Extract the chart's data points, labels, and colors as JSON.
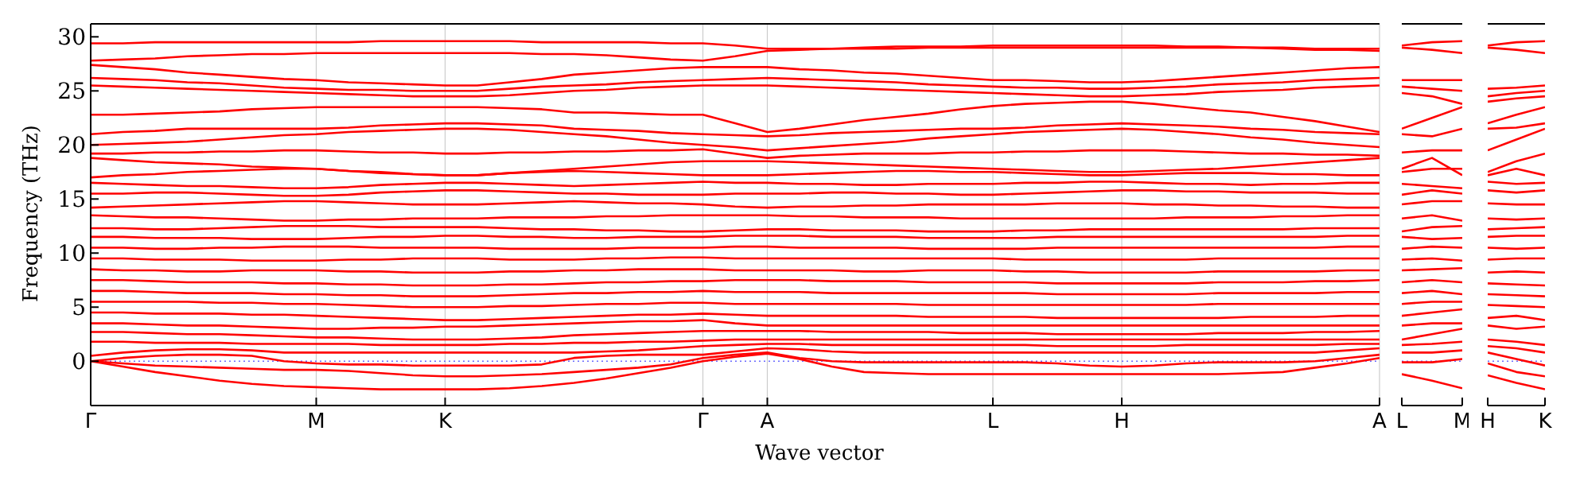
{
  "chart_data": [
    {
      "type": "line",
      "xlabel": "Wave vector",
      "ylabel": "Frequency (THz)",
      "ylim": [
        -4.1,
        31.2
      ],
      "yticks": [
        0,
        5,
        10,
        15,
        20,
        25,
        30
      ],
      "grid": "x",
      "marker": "none",
      "line_style": "solid",
      "ref_lines": [
        {
          "axis": "y",
          "value": 0,
          "color": "#6a6aff",
          "line_style": "dotted"
        }
      ],
      "categories": [
        "Γ",
        null,
        null,
        null,
        null,
        null,
        null,
        "M",
        null,
        null,
        null,
        "K",
        null,
        null,
        null,
        null,
        null,
        null,
        null,
        "Γ",
        null,
        "A",
        null,
        null,
        null,
        null,
        null,
        null,
        "L",
        null,
        null,
        null,
        "H",
        null,
        null,
        null,
        null,
        null,
        null,
        null,
        "A"
      ],
      "series": [
        {
          "color": "#ff0000",
          "values": [
            0,
            -0.5,
            -1,
            -1.4,
            -1.8,
            -2.1,
            -2.3,
            -2.4,
            -2.5,
            -2.6,
            -2.6,
            -2.6,
            -2.6,
            -2.5,
            -2.3,
            -2,
            -1.6,
            -1.1,
            -0.6,
            0,
            0.4,
            0.7,
            0.2,
            -0.5,
            -1,
            -1.1,
            -1.2,
            -1.2,
            -1.2,
            -1.2,
            -1.2,
            -1.2,
            -1.2,
            -1.2,
            -1.2,
            -1.2,
            -1.1,
            -1,
            -0.6,
            -0.2,
            0.3
          ]
        },
        {
          "color": "#ff0000",
          "values": [
            0,
            -0.2,
            -0.4,
            -0.5,
            -0.6,
            -0.7,
            -0.8,
            -0.8,
            -0.9,
            -1.1,
            -1.3,
            -1.4,
            -1.4,
            -1.3,
            -1.2,
            -1,
            -0.8,
            -0.6,
            -0.3,
            0.3,
            0.6,
            0.8,
            0.3,
            0,
            -0.1,
            -0.1,
            -0.1,
            -0.1,
            -0.1,
            -0.1,
            -0.2,
            -0.4,
            -0.5,
            -0.4,
            -0.2,
            -0.1,
            -0.1,
            -0.1,
            0,
            0.3,
            0.6
          ]
        },
        {
          "color": "#ff0000",
          "values": [
            0,
            0.3,
            0.5,
            0.6,
            0.6,
            0.5,
            0,
            -0.2,
            -0.3,
            -0.3,
            -0.4,
            -0.4,
            -0.4,
            -0.4,
            -0.3,
            0.3,
            0.5,
            0.6,
            0.6,
            0.6,
            0.9,
            1.2,
            1.1,
            0.9,
            0.8,
            0.8,
            0.8,
            0.8,
            0.8,
            0.8,
            0.8,
            0.8,
            0.8,
            0.8,
            0.8,
            0.8,
            0.8,
            0.8,
            0.8,
            1,
            1.2
          ]
        },
        {
          "color": "#ff0000",
          "values": [
            0.5,
            0.8,
            1,
            1.1,
            1.1,
            1,
            0.8,
            0.8,
            0.8,
            0.8,
            0.8,
            0.8,
            0.8,
            0.8,
            0.8,
            0.8,
            0.9,
            1,
            1.2,
            1.4,
            1.5,
            1.6,
            1.6,
            1.5,
            1.5,
            1.5,
            1.5,
            1.5,
            1.5,
            1.5,
            1.4,
            1.4,
            1.4,
            1.4,
            1.5,
            1.5,
            1.5,
            1.5,
            1.5,
            1.6,
            1.6
          ]
        },
        {
          "color": "#ff0000",
          "values": [
            1.8,
            1.8,
            1.7,
            1.7,
            1.7,
            1.6,
            1.6,
            1.6,
            1.6,
            1.5,
            1.5,
            1.5,
            1.5,
            1.6,
            1.6,
            1.7,
            1.7,
            1.8,
            1.8,
            1.9,
            2,
            2,
            2,
            2,
            2,
            2,
            2,
            2,
            2,
            2,
            2,
            2,
            2,
            2,
            2,
            2,
            2,
            2,
            2,
            2,
            2
          ]
        },
        {
          "color": "#ff0000",
          "values": [
            2.7,
            2.7,
            2.6,
            2.5,
            2.5,
            2.4,
            2.3,
            2.2,
            2.2,
            2.1,
            2,
            2,
            2,
            2.1,
            2.2,
            2.4,
            2.5,
            2.6,
            2.7,
            2.8,
            2.8,
            2.8,
            2.8,
            2.7,
            2.7,
            2.7,
            2.7,
            2.6,
            2.6,
            2.6,
            2.5,
            2.5,
            2.5,
            2.5,
            2.5,
            2.6,
            2.6,
            2.6,
            2.7,
            2.7,
            2.8
          ]
        },
        {
          "color": "#ff0000",
          "values": [
            3.5,
            3.5,
            3.4,
            3.3,
            3.3,
            3.2,
            3.1,
            3,
            3,
            3.1,
            3.1,
            3.2,
            3.2,
            3.3,
            3.4,
            3.5,
            3.6,
            3.7,
            3.7,
            3.8,
            3.5,
            3.3,
            3.3,
            3.3,
            3.3,
            3.3,
            3.3,
            3.3,
            3.3,
            3.3,
            3.3,
            3.3,
            3.3,
            3.3,
            3.3,
            3.3,
            3.3,
            3.3,
            3.3,
            3.3,
            3.3
          ]
        },
        {
          "color": "#ff0000",
          "values": [
            4.5,
            4.5,
            4.4,
            4.4,
            4.4,
            4.3,
            4.3,
            4.2,
            4.1,
            4,
            3.9,
            3.8,
            3.8,
            3.9,
            4,
            4.1,
            4.2,
            4.3,
            4.3,
            4.4,
            4.3,
            4.2,
            4.2,
            4.2,
            4.2,
            4.2,
            4.1,
            4.1,
            4.1,
            4.1,
            4,
            4,
            4,
            4,
            4,
            4,
            4.1,
            4.1,
            4.1,
            4.2,
            4.2
          ]
        },
        {
          "color": "#ff0000",
          "values": [
            5.5,
            5.5,
            5.5,
            5.5,
            5.4,
            5.4,
            5.3,
            5.3,
            5.2,
            5.1,
            5,
            5,
            5,
            5.1,
            5.1,
            5.2,
            5.3,
            5.3,
            5.4,
            5.4,
            5.3,
            5.3,
            5.3,
            5.3,
            5.3,
            5.3,
            5.2,
            5.2,
            5.2,
            5.2,
            5.2,
            5.2,
            5.2,
            5.2,
            5.2,
            5.3,
            5.3,
            5.3,
            5.3,
            5.3,
            5.3
          ]
        },
        {
          "color": "#ff0000",
          "values": [
            6.5,
            6.5,
            6.4,
            6.3,
            6.3,
            6.3,
            6.2,
            6.2,
            6.1,
            6.1,
            6,
            6,
            6,
            6.1,
            6.2,
            6.3,
            6.3,
            6.4,
            6.4,
            6.5,
            6.4,
            6.4,
            6.4,
            6.3,
            6.3,
            6.3,
            6.3,
            6.3,
            6.3,
            6.3,
            6.2,
            6.2,
            6.2,
            6.2,
            6.2,
            6.3,
            6.3,
            6.3,
            6.3,
            6.4,
            6.4
          ]
        },
        {
          "color": "#ff0000",
          "values": [
            7.5,
            7.5,
            7.4,
            7.3,
            7.3,
            7.3,
            7.2,
            7.2,
            7.1,
            7.1,
            7,
            7,
            7,
            7.1,
            7.1,
            7.2,
            7.3,
            7.3,
            7.4,
            7.4,
            7.5,
            7.5,
            7.5,
            7.4,
            7.4,
            7.4,
            7.3,
            7.3,
            7.3,
            7.3,
            7.2,
            7.2,
            7.2,
            7.2,
            7.2,
            7.3,
            7.3,
            7.3,
            7.4,
            7.4,
            7.5
          ]
        },
        {
          "color": "#ff0000",
          "values": [
            8.5,
            8.4,
            8.4,
            8.3,
            8.3,
            8.4,
            8.4,
            8.4,
            8.3,
            8.3,
            8.2,
            8.2,
            8.2,
            8.3,
            8.3,
            8.4,
            8.4,
            8.5,
            8.5,
            8.5,
            8.4,
            8.4,
            8.4,
            8.4,
            8.3,
            8.3,
            8.4,
            8.4,
            8.4,
            8.3,
            8.3,
            8.2,
            8.2,
            8.2,
            8.2,
            8.3,
            8.3,
            8.3,
            8.3,
            8.4,
            8.4
          ]
        },
        {
          "color": "#ff0000",
          "values": [
            9.5,
            9.5,
            9.4,
            9.4,
            9.4,
            9.3,
            9.3,
            9.3,
            9.4,
            9.4,
            9.5,
            9.5,
            9.5,
            9.4,
            9.4,
            9.4,
            9.5,
            9.5,
            9.6,
            9.6,
            9.5,
            9.5,
            9.5,
            9.5,
            9.5,
            9.5,
            9.5,
            9.5,
            9.5,
            9.4,
            9.4,
            9.4,
            9.4,
            9.4,
            9.4,
            9.5,
            9.5,
            9.5,
            9.5,
            9.5,
            9.5
          ]
        },
        {
          "color": "#ff0000",
          "values": [
            10.5,
            10.5,
            10.4,
            10.4,
            10.5,
            10.5,
            10.6,
            10.6,
            10.6,
            10.5,
            10.5,
            10.5,
            10.5,
            10.4,
            10.4,
            10.4,
            10.4,
            10.5,
            10.5,
            10.5,
            10.6,
            10.6,
            10.5,
            10.5,
            10.5,
            10.5,
            10.4,
            10.4,
            10.4,
            10.4,
            10.5,
            10.5,
            10.5,
            10.5,
            10.5,
            10.5,
            10.5,
            10.5,
            10.5,
            10.6,
            10.6
          ]
        },
        {
          "color": "#ff0000",
          "values": [
            11.5,
            11.5,
            11.4,
            11.4,
            11.4,
            11.3,
            11.3,
            11.3,
            11.4,
            11.5,
            11.5,
            11.6,
            11.6,
            11.5,
            11.5,
            11.4,
            11.4,
            11.5,
            11.5,
            11.5,
            11.6,
            11.6,
            11.6,
            11.5,
            11.5,
            11.5,
            11.4,
            11.4,
            11.4,
            11.4,
            11.5,
            11.5,
            11.5,
            11.5,
            11.5,
            11.5,
            11.5,
            11.5,
            11.5,
            11.6,
            11.6
          ]
        },
        {
          "color": "#ff0000",
          "values": [
            12.3,
            12.3,
            12.2,
            12.2,
            12.3,
            12.4,
            12.5,
            12.5,
            12.5,
            12.4,
            12.4,
            12.4,
            12.4,
            12.3,
            12.2,
            12.2,
            12.1,
            12.1,
            12,
            12,
            12.1,
            12.2,
            12.2,
            12.1,
            12.1,
            12.1,
            12,
            12,
            12,
            12.1,
            12.1,
            12.2,
            12.2,
            12.2,
            12.2,
            12.2,
            12.2,
            12.2,
            12.3,
            12.3,
            12.3
          ]
        },
        {
          "color": "#ff0000",
          "values": [
            13.5,
            13.4,
            13.3,
            13.3,
            13.2,
            13.1,
            13,
            13,
            13.1,
            13.1,
            13.2,
            13.2,
            13.2,
            13.3,
            13.3,
            13.3,
            13.4,
            13.4,
            13.5,
            13.5,
            13.5,
            13.5,
            13.4,
            13.4,
            13.3,
            13.3,
            13.3,
            13.2,
            13.2,
            13.2,
            13.2,
            13.2,
            13.2,
            13.2,
            13.3,
            13.3,
            13.3,
            13.4,
            13.4,
            13.5,
            13.5
          ]
        },
        {
          "color": "#ff0000",
          "values": [
            14.2,
            14.3,
            14.4,
            14.5,
            14.6,
            14.7,
            14.8,
            14.8,
            14.7,
            14.6,
            14.5,
            14.5,
            14.5,
            14.6,
            14.7,
            14.8,
            14.7,
            14.6,
            14.6,
            14.5,
            14.3,
            14.2,
            14.3,
            14.3,
            14.4,
            14.4,
            14.5,
            14.5,
            14.5,
            14.5,
            14.6,
            14.6,
            14.6,
            14.5,
            14.5,
            14.4,
            14.4,
            14.3,
            14.3,
            14.2,
            14.2
          ]
        },
        {
          "color": "#ff0000",
          "values": [
            15.5,
            15.5,
            15.6,
            15.6,
            15.5,
            15.4,
            15.3,
            15.3,
            15.4,
            15.6,
            15.7,
            15.8,
            15.8,
            15.7,
            15.6,
            15.5,
            15.5,
            15.4,
            15.4,
            15.4,
            15.5,
            15.5,
            15.5,
            15.6,
            15.6,
            15.5,
            15.5,
            15.4,
            15.4,
            15.5,
            15.6,
            15.7,
            15.8,
            15.8,
            15.7,
            15.7,
            15.6,
            15.6,
            15.6,
            15.5,
            15.5
          ]
        },
        {
          "color": "#ff0000",
          "values": [
            16.5,
            16.4,
            16.3,
            16.2,
            16.2,
            16.1,
            16,
            16,
            16.1,
            16.3,
            16.4,
            16.5,
            16.5,
            16.4,
            16.3,
            16.2,
            16.3,
            16.4,
            16.5,
            16.6,
            16.5,
            16.5,
            16.4,
            16.4,
            16.3,
            16.3,
            16.4,
            16.4,
            16.4,
            16.5,
            16.5,
            16.6,
            16.6,
            16.5,
            16.4,
            16.4,
            16.3,
            16.4,
            16.4,
            16.5,
            16.5
          ]
        },
        {
          "color": "#ff0000",
          "values": [
            17,
            17.2,
            17.3,
            17.5,
            17.6,
            17.7,
            17.8,
            17.8,
            17.6,
            17.5,
            17.3,
            17.2,
            17.2,
            17.4,
            17.5,
            17.6,
            17.5,
            17.4,
            17.3,
            17.2,
            17.2,
            17.2,
            17.3,
            17.4,
            17.5,
            17.6,
            17.6,
            17.5,
            17.5,
            17.4,
            17.3,
            17.2,
            17.2,
            17.3,
            17.4,
            17.4,
            17.4,
            17.3,
            17.3,
            17.2,
            17.2
          ]
        },
        {
          "color": "#ff0000",
          "values": [
            18.8,
            18.6,
            18.4,
            18.3,
            18.2,
            18,
            17.9,
            17.8,
            17.6,
            17.4,
            17.3,
            17.2,
            17.2,
            17.4,
            17.6,
            17.8,
            18,
            18.2,
            18.4,
            18.5,
            18.5,
            18.5,
            18.4,
            18.3,
            18.2,
            18.1,
            18,
            17.9,
            17.8,
            17.7,
            17.6,
            17.5,
            17.5,
            17.6,
            17.7,
            17.8,
            18,
            18.2,
            18.4,
            18.6,
            18.8
          ]
        },
        {
          "color": "#ff0000",
          "values": [
            19.2,
            19.2,
            19.3,
            19.3,
            19.4,
            19.4,
            19.5,
            19.5,
            19.4,
            19.3,
            19.3,
            19.2,
            19.2,
            19.3,
            19.3,
            19.4,
            19.4,
            19.5,
            19.5,
            19.6,
            19.2,
            18.8,
            19,
            19.1,
            19.2,
            19.2,
            19.2,
            19.3,
            19.3,
            19.4,
            19.4,
            19.5,
            19.5,
            19.5,
            19.4,
            19.3,
            19.2,
            19.2,
            19.1,
            19.1,
            19
          ]
        },
        {
          "color": "#ff0000",
          "values": [
            20,
            20.1,
            20.2,
            20.3,
            20.5,
            20.7,
            20.9,
            21,
            21.2,
            21.3,
            21.4,
            21.5,
            21.5,
            21.4,
            21.2,
            21,
            20.8,
            20.5,
            20.2,
            20,
            19.8,
            19.5,
            19.7,
            19.9,
            20.1,
            20.3,
            20.6,
            20.8,
            21,
            21.2,
            21.3,
            21.4,
            21.5,
            21.4,
            21.2,
            21,
            20.7,
            20.5,
            20.2,
            20,
            19.8
          ]
        },
        {
          "color": "#ff0000",
          "values": [
            21,
            21.2,
            21.3,
            21.5,
            21.5,
            21.5,
            21.5,
            21.5,
            21.6,
            21.8,
            21.9,
            22,
            22,
            21.9,
            21.8,
            21.5,
            21.4,
            21.3,
            21.1,
            21,
            20.9,
            20.8,
            20.9,
            21.1,
            21.2,
            21.3,
            21.4,
            21.5,
            21.5,
            21.6,
            21.8,
            21.9,
            22,
            21.9,
            21.8,
            21.7,
            21.5,
            21.4,
            21.2,
            21.1,
            21
          ]
        },
        {
          "color": "#ff0000",
          "values": [
            22.8,
            22.8,
            22.9,
            23,
            23.1,
            23.3,
            23.4,
            23.5,
            23.5,
            23.5,
            23.5,
            23.5,
            23.5,
            23.4,
            23.3,
            23,
            23,
            22.9,
            22.8,
            22.8,
            22,
            21.2,
            21.5,
            21.9,
            22.3,
            22.6,
            22.9,
            23.3,
            23.6,
            23.8,
            23.9,
            24,
            24,
            23.8,
            23.5,
            23.2,
            23,
            22.6,
            22.2,
            21.7,
            21.2
          ]
        },
        {
          "color": "#ff0000",
          "values": [
            25.5,
            25.4,
            25.3,
            25.2,
            25.1,
            25,
            24.9,
            24.8,
            24.7,
            24.6,
            24.5,
            24.5,
            24.5,
            24.6,
            24.8,
            25,
            25.1,
            25.3,
            25.4,
            25.5,
            25.5,
            25.5,
            25.4,
            25.3,
            25.2,
            25.1,
            25,
            24.9,
            24.8,
            24.7,
            24.6,
            24.5,
            24.5,
            24.6,
            24.7,
            24.9,
            25,
            25.1,
            25.3,
            25.4,
            25.5
          ]
        },
        {
          "color": "#ff0000",
          "values": [
            26.2,
            26.1,
            26,
            25.8,
            25.7,
            25.5,
            25.3,
            25.2,
            25.1,
            25.1,
            25,
            25,
            25,
            25.2,
            25.4,
            25.5,
            25.6,
            25.8,
            25.9,
            26,
            26.1,
            26.2,
            26.1,
            26,
            25.9,
            25.8,
            25.6,
            25.5,
            25.4,
            25.3,
            25.3,
            25.2,
            25.2,
            25.3,
            25.4,
            25.6,
            25.7,
            25.8,
            26,
            26.1,
            26.2
          ]
        },
        {
          "color": "#ff0000",
          "values": [
            27.4,
            27.2,
            27,
            26.7,
            26.5,
            26.3,
            26.1,
            26,
            25.8,
            25.7,
            25.6,
            25.5,
            25.5,
            25.8,
            26.1,
            26.5,
            26.7,
            26.9,
            27.1,
            27.2,
            27.2,
            27.2,
            27,
            26.9,
            26.7,
            26.6,
            26.4,
            26.2,
            26,
            26,
            25.9,
            25.8,
            25.8,
            25.9,
            26.1,
            26.3,
            26.5,
            26.7,
            26.9,
            27.1,
            27.2
          ]
        },
        {
          "color": "#ff0000",
          "values": [
            27.8,
            27.9,
            28,
            28.2,
            28.3,
            28.4,
            28.4,
            28.5,
            28.5,
            28.5,
            28.5,
            28.5,
            28.5,
            28.5,
            28.4,
            28.4,
            28.3,
            28.1,
            27.9,
            27.8,
            28.2,
            28.7,
            28.8,
            28.9,
            28.9,
            28.9,
            29,
            29,
            29,
            29,
            29,
            29,
            29,
            29,
            29,
            29,
            29,
            28.9,
            28.8,
            28.8,
            28.7
          ]
        },
        {
          "color": "#ff0000",
          "values": [
            29.4,
            29.4,
            29.5,
            29.5,
            29.5,
            29.5,
            29.5,
            29.5,
            29.5,
            29.6,
            29.6,
            29.6,
            29.6,
            29.6,
            29.5,
            29.5,
            29.5,
            29.5,
            29.4,
            29.4,
            29.2,
            28.9,
            28.9,
            28.9,
            29,
            29.1,
            29.1,
            29.1,
            29.2,
            29.2,
            29.2,
            29.2,
            29.2,
            29.2,
            29.1,
            29.1,
            29,
            29,
            28.9,
            28.9,
            28.9
          ]
        }
      ]
    },
    {
      "type": "line",
      "ylim": [
        -4.1,
        31.2
      ],
      "yticks": [
        0,
        5,
        10,
        15,
        20,
        25,
        30
      ],
      "tick_labels": "x",
      "marker": "none",
      "line_style": "solid",
      "ref_lines": [
        {
          "axis": "y",
          "value": 0,
          "color": "#6a6aff",
          "line_style": "dotted"
        }
      ],
      "categories": [
        "L",
        null,
        "M"
      ],
      "series": [
        {
          "color": "#ff0000",
          "values": [
            -1.2,
            -1.8,
            -2.5
          ]
        },
        {
          "color": "#ff0000",
          "values": [
            -0.1,
            -0.1,
            0.2
          ]
        },
        {
          "color": "#ff0000",
          "values": [
            0.8,
            0.8,
            1
          ]
        },
        {
          "color": "#ff0000",
          "values": [
            1.5,
            1.6,
            1.8
          ]
        },
        {
          "color": "#ff0000",
          "values": [
            2,
            2.5,
            3
          ]
        },
        {
          "color": "#ff0000",
          "values": [
            3.3,
            3.5,
            3.5
          ]
        },
        {
          "color": "#ff0000",
          "values": [
            4.2,
            4.5,
            4.8
          ]
        },
        {
          "color": "#ff0000",
          "values": [
            5.3,
            5.5,
            5.5
          ]
        },
        {
          "color": "#ff0000",
          "values": [
            6.3,
            6.5,
            6.2
          ]
        },
        {
          "color": "#ff0000",
          "values": [
            7.3,
            7.5,
            7.3
          ]
        },
        {
          "color": "#ff0000",
          "values": [
            8.4,
            8.5,
            8.6
          ]
        },
        {
          "color": "#ff0000",
          "values": [
            9.4,
            9.5,
            9.3
          ]
        },
        {
          "color": "#ff0000",
          "values": [
            10.4,
            10.6,
            10.5
          ]
        },
        {
          "color": "#ff0000",
          "values": [
            11.5,
            11.3,
            11.4
          ]
        },
        {
          "color": "#ff0000",
          "values": [
            12,
            12.4,
            12.5
          ]
        },
        {
          "color": "#ff0000",
          "values": [
            13.2,
            13.5,
            13
          ]
        },
        {
          "color": "#ff0000",
          "values": [
            14.5,
            14.8,
            14.8
          ]
        },
        {
          "color": "#ff0000",
          "values": [
            15.4,
            15.8,
            15.5
          ]
        },
        {
          "color": "#ff0000",
          "values": [
            16.4,
            16.2,
            16
          ]
        },
        {
          "color": "#ff0000",
          "values": [
            17.5,
            17.8,
            17.8
          ]
        },
        {
          "color": "#ff0000",
          "values": [
            17.8,
            18.8,
            17.2
          ]
        },
        {
          "color": "#ff0000",
          "values": [
            19.3,
            19.5,
            19.5
          ]
        },
        {
          "color": "#ff0000",
          "values": [
            21,
            20.8,
            21.5
          ]
        },
        {
          "color": "#ff0000",
          "values": [
            21.5,
            22.5,
            23.5
          ]
        },
        {
          "color": "#ff0000",
          "values": [
            24.8,
            24.5,
            23.8
          ]
        },
        {
          "color": "#ff0000",
          "values": [
            25.4,
            25.2,
            25
          ]
        },
        {
          "color": "#ff0000",
          "values": [
            26,
            26,
            26
          ]
        },
        {
          "color": "#ff0000",
          "values": [
            29,
            28.8,
            28.5
          ]
        },
        {
          "color": "#ff0000",
          "values": [
            29.2,
            29.5,
            29.6
          ]
        }
      ]
    },
    {
      "type": "line",
      "ylim": [
        -4.1,
        31.2
      ],
      "yticks": [
        0,
        5,
        10,
        15,
        20,
        25,
        30
      ],
      "tick_labels": "x",
      "marker": "none",
      "line_style": "solid",
      "ref_lines": [
        {
          "axis": "y",
          "value": 0,
          "color": "#6a6aff",
          "line_style": "dotted"
        }
      ],
      "categories": [
        "H",
        null,
        "K"
      ],
      "series": [
        {
          "color": "#ff0000",
          "values": [
            -1.3,
            -2,
            -2.6
          ]
        },
        {
          "color": "#ff0000",
          "values": [
            -0.2,
            -1,
            -1.4
          ]
        },
        {
          "color": "#ff0000",
          "values": [
            0.8,
            0.2,
            -0.4
          ]
        },
        {
          "color": "#ff0000",
          "values": [
            1.4,
            1.2,
            0.8
          ]
        },
        {
          "color": "#ff0000",
          "values": [
            2,
            1.8,
            1.5
          ]
        },
        {
          "color": "#ff0000",
          "values": [
            3.3,
            3,
            3.2
          ]
        },
        {
          "color": "#ff0000",
          "values": [
            4,
            4.2,
            3.8
          ]
        },
        {
          "color": "#ff0000",
          "values": [
            5.2,
            5.1,
            5
          ]
        },
        {
          "color": "#ff0000",
          "values": [
            6.2,
            6.1,
            6
          ]
        },
        {
          "color": "#ff0000",
          "values": [
            7.2,
            7.1,
            7
          ]
        },
        {
          "color": "#ff0000",
          "values": [
            8.2,
            8.3,
            8.2
          ]
        },
        {
          "color": "#ff0000",
          "values": [
            9.4,
            9.5,
            9.5
          ]
        },
        {
          "color": "#ff0000",
          "values": [
            10.5,
            10.4,
            10.5
          ]
        },
        {
          "color": "#ff0000",
          "values": [
            11.5,
            11.6,
            11.6
          ]
        },
        {
          "color": "#ff0000",
          "values": [
            12.2,
            12.3,
            12.4
          ]
        },
        {
          "color": "#ff0000",
          "values": [
            13.2,
            13.1,
            13.2
          ]
        },
        {
          "color": "#ff0000",
          "values": [
            14.6,
            14.5,
            14.5
          ]
        },
        {
          "color": "#ff0000",
          "values": [
            15.8,
            15.6,
            15.8
          ]
        },
        {
          "color": "#ff0000",
          "values": [
            16.6,
            16.4,
            16.5
          ]
        },
        {
          "color": "#ff0000",
          "values": [
            17.2,
            17.8,
            17.2
          ]
        },
        {
          "color": "#ff0000",
          "values": [
            17.5,
            18.5,
            19.2
          ]
        },
        {
          "color": "#ff0000",
          "values": [
            19.5,
            20.5,
            21.5
          ]
        },
        {
          "color": "#ff0000",
          "values": [
            21.5,
            21.6,
            22
          ]
        },
        {
          "color": "#ff0000",
          "values": [
            22,
            22.8,
            23.5
          ]
        },
        {
          "color": "#ff0000",
          "values": [
            24,
            24.3,
            24.5
          ]
        },
        {
          "color": "#ff0000",
          "values": [
            24.5,
            24.8,
            25
          ]
        },
        {
          "color": "#ff0000",
          "values": [
            25.2,
            25.3,
            25.5
          ]
        },
        {
          "color": "#ff0000",
          "values": [
            29,
            28.8,
            28.5
          ]
        },
        {
          "color": "#ff0000",
          "values": [
            29.2,
            29.5,
            29.6
          ]
        }
      ]
    }
  ]
}
